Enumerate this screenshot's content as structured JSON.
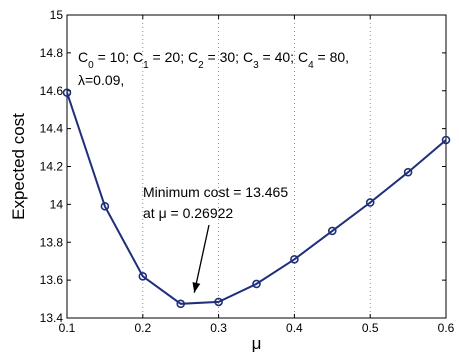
{
  "chart_data": {
    "type": "line",
    "title": "",
    "xlabel": "μ",
    "ylabel": "Expected cost",
    "xlim": [
      0.1,
      0.6
    ],
    "ylim": [
      13.4,
      15
    ],
    "xticks": [
      0.1,
      0.2,
      0.3,
      0.4,
      0.5,
      0.6
    ],
    "xtick_labels": [
      "0.1",
      "0.2",
      "0.3",
      "0.4",
      "0.5",
      "0.6"
    ],
    "yticks": [
      13.4,
      13.6,
      13.8,
      14,
      14.2,
      14.4,
      14.6,
      14.8,
      15
    ],
    "ytick_labels": [
      "13.4",
      "13.6",
      "13.8",
      "14",
      "14.2",
      "14.4",
      "14.6",
      "14.8",
      "15"
    ],
    "grid": "vertical dotted",
    "series": [
      {
        "x": [
          0.1,
          0.15,
          0.2,
          0.25,
          0.3,
          0.35,
          0.4,
          0.45,
          0.5,
          0.55,
          0.6
        ],
        "y": [
          14.59,
          13.99,
          13.62,
          13.475,
          13.485,
          13.58,
          13.71,
          13.86,
          14.01,
          14.17,
          14.34
        ],
        "color": "#1f2f7a",
        "marker": "circle"
      }
    ],
    "parameters_text": {
      "line1_parts": [
        {
          "t": "C"
        },
        {
          "t": "0",
          "sub": true
        },
        {
          "t": " = 10; C"
        },
        {
          "t": "1",
          "sub": true
        },
        {
          "t": " = 20; C"
        },
        {
          "t": "2",
          "sub": true
        },
        {
          "t": " = 30; C"
        },
        {
          "t": "3",
          "sub": true
        },
        {
          "t": " = 40; C"
        },
        {
          "t": "4",
          "sub": true
        },
        {
          "t": " = 80,"
        }
      ],
      "line2": "λ=0.09,"
    },
    "annotation": {
      "line1": "Minimum cost = 13.465",
      "line2": "at μ = 0.26922",
      "target_x": 0.26922,
      "target_y": 13.465
    }
  }
}
